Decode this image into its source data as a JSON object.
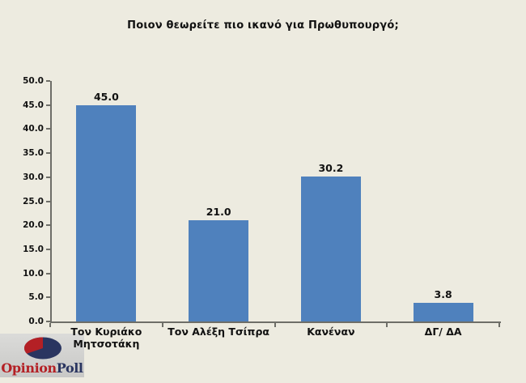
{
  "chart_data": {
    "type": "bar",
    "title": "Ποιον θεωρείτε πιο ικανό για Πρωθυπουργό;",
    "categories": [
      "Τον Κυριάκο Μητσοτάκη",
      "Τον Αλέξη Τσίπρα",
      "Κανέναν",
      "ΔΓ/ ΔΑ"
    ],
    "values": [
      45.0,
      21.0,
      30.2,
      3.8
    ],
    "value_labels": [
      "45.0",
      "21.0",
      "30.2",
      "3.8"
    ],
    "xlabel": "",
    "ylabel": "",
    "ylim": [
      0,
      50
    ],
    "ytick_step": 5,
    "ytick_labels": [
      "0.0",
      "5.0",
      "10.0",
      "15.0",
      "20.0",
      "25.0",
      "30.0",
      "35.0",
      "40.0",
      "45.0",
      "50.0"
    ],
    "grid": false,
    "legend": "none",
    "bar_color": "#4F81BD"
  },
  "logo": {
    "name": "OpinionPoll",
    "text_primary": "Opinion",
    "text_secondary": "Poll",
    "icon": "pie-chart-icon"
  },
  "colors": {
    "background": "#EDEBE0",
    "bar": "#4F81BD",
    "axis": "#6E6E68",
    "text": "#111111",
    "logo_bg_top": "#DBDBD9",
    "logo_bg_bottom": "#C8C8C6",
    "logo_red": "#B42025",
    "logo_navy": "#2A3560"
  }
}
